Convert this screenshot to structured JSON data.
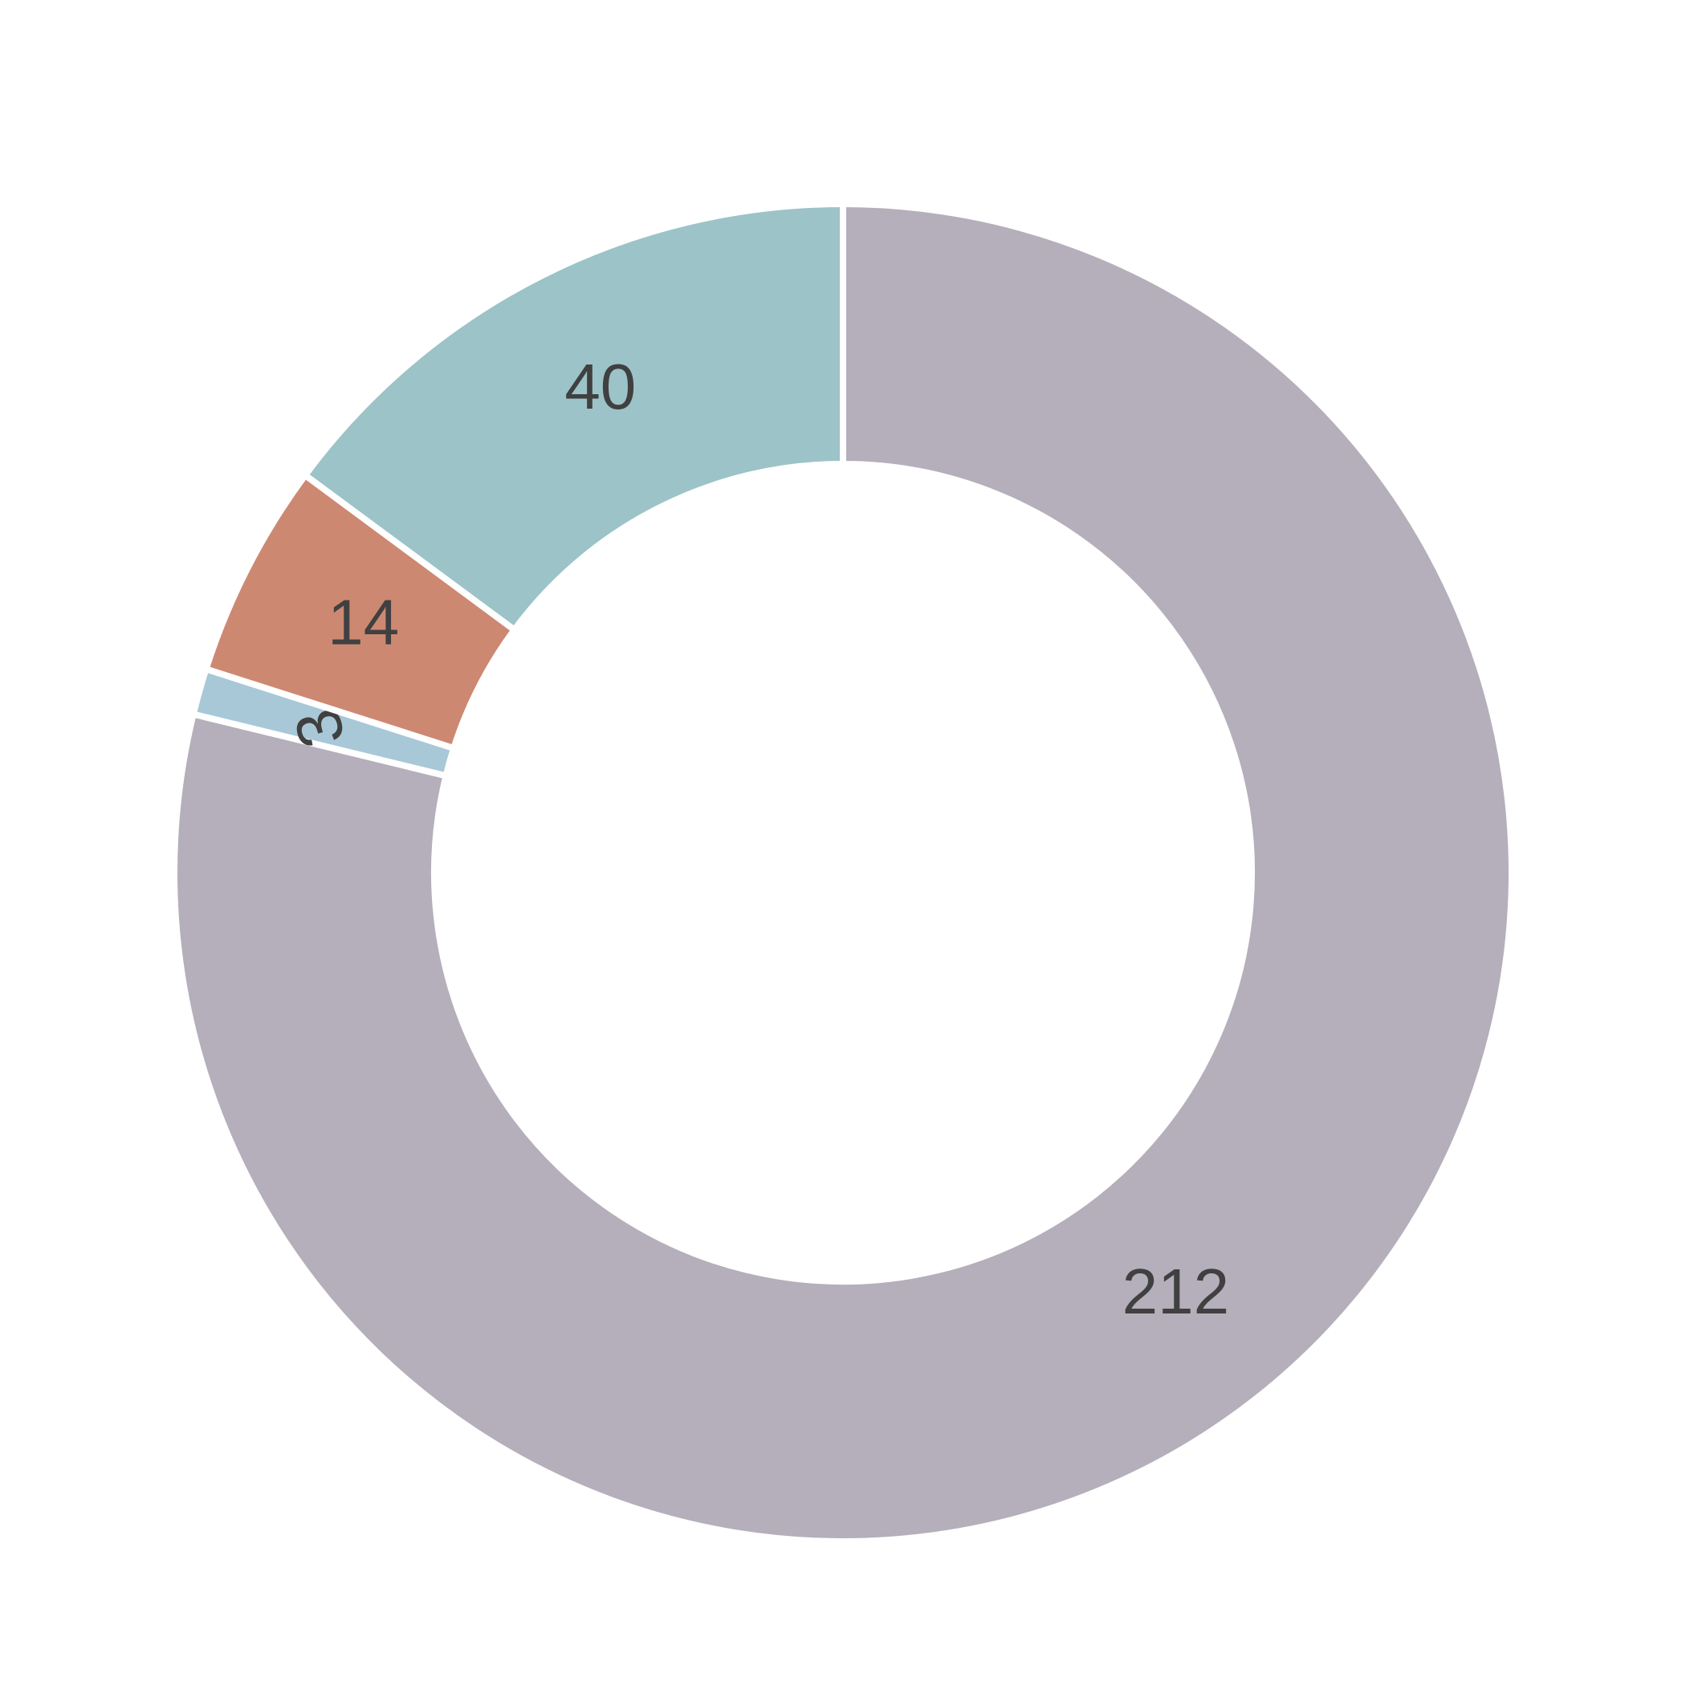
{
  "chart_data": {
    "type": "pie",
    "values": [
      212,
      3,
      14,
      40
    ],
    "colors": [
      "#b4afba",
      "#a8c8d8",
      "#cd8872",
      "#9cc3c7"
    ],
    "donut": true
  }
}
